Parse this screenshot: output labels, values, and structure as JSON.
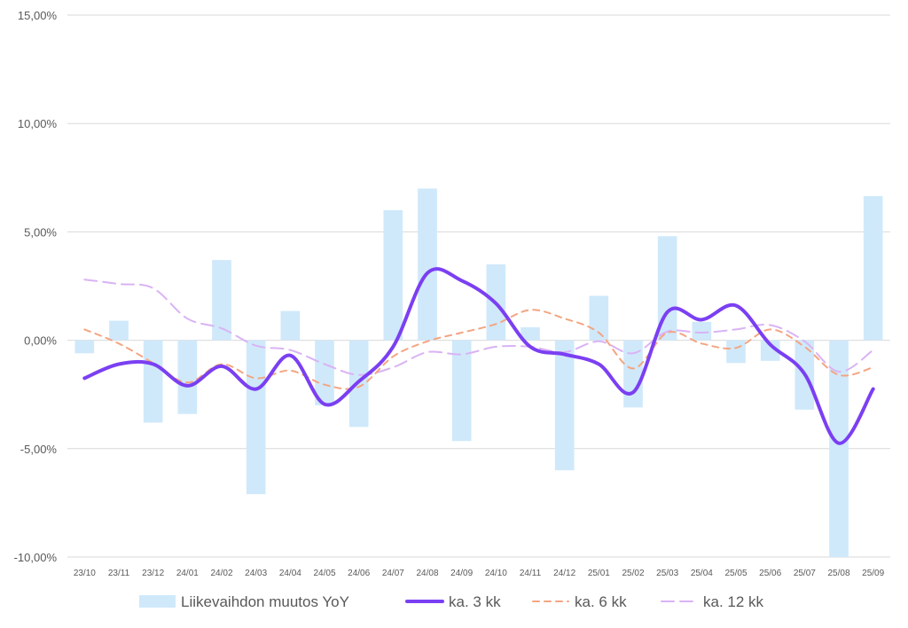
{
  "chart_data": {
    "type": "bar+line",
    "title": "",
    "xlabel": "",
    "ylabel": "",
    "ylim": [
      -10,
      15
    ],
    "yticks": [
      15,
      10,
      5,
      0,
      -5,
      -10
    ],
    "ytick_labels": [
      "15,00%",
      "10,00%",
      "5,00%",
      "0,00%",
      "-5,00%",
      "-10,00%"
    ],
    "categories": [
      "23/10",
      "23/11",
      "23/12",
      "24/01",
      "24/02",
      "24/03",
      "24/04",
      "24/05",
      "24/06",
      "24/07",
      "24/08",
      "24/09",
      "24/10",
      "24/11",
      "24/12",
      "25/01",
      "25/02",
      "25/03",
      "25/04",
      "25/05",
      "25/06",
      "25/07",
      "25/08",
      "25/09"
    ],
    "series": [
      {
        "name": "Liikevaihdon muutos YoY",
        "kind": "bar",
        "color": "#cfe9fb",
        "values": [
          -0.6,
          0.9,
          -3.8,
          -3.4,
          3.7,
          -7.1,
          1.35,
          -3.0,
          -4.0,
          6.0,
          7.0,
          -4.65,
          3.5,
          0.6,
          -6.0,
          2.05,
          -3.1,
          4.8,
          0.85,
          -1.05,
          -0.95,
          -3.2,
          -10.0,
          6.65
        ]
      },
      {
        "name": "ka. 3 kk",
        "kind": "line",
        "style": "solid",
        "color": "#7b3ff2",
        "values": [
          -1.75,
          -1.1,
          -1.1,
          -2.1,
          -1.2,
          -2.25,
          -0.7,
          -2.95,
          -1.9,
          -0.3,
          3.1,
          2.75,
          1.7,
          -0.3,
          -0.65,
          -1.1,
          -2.4,
          1.3,
          0.95,
          1.6,
          -0.2,
          -1.55,
          -4.75,
          -2.25
        ]
      },
      {
        "name": "ka. 6 kk",
        "kind": "line",
        "style": "dashed",
        "color": "#f4a582",
        "values": [
          0.5,
          -0.15,
          -1.05,
          -1.95,
          -1.1,
          -1.75,
          -1.4,
          -2.05,
          -2.15,
          -0.75,
          -0.05,
          0.35,
          0.75,
          1.4,
          1.0,
          0.35,
          -1.3,
          0.35,
          -0.15,
          -0.35,
          0.5,
          -0.3,
          -1.6,
          -1.25
        ]
      },
      {
        "name": "ka. 12 kk",
        "kind": "line",
        "style": "dashed",
        "color": "#d9b3f5",
        "values": [
          2.8,
          2.6,
          2.4,
          1.0,
          0.55,
          -0.25,
          -0.45,
          -1.1,
          -1.6,
          -1.25,
          -0.55,
          -0.65,
          -0.3,
          -0.3,
          -0.55,
          -0.05,
          -0.6,
          0.4,
          0.35,
          0.5,
          0.7,
          -0.05,
          -1.45,
          -0.45
        ]
      }
    ],
    "grid": true,
    "legend_position": "bottom"
  }
}
